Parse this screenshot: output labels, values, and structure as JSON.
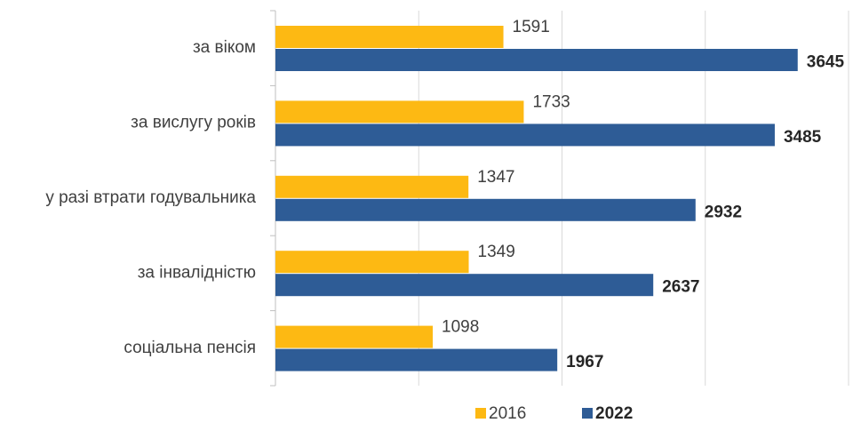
{
  "chart_data": {
    "type": "bar",
    "orientation": "horizontal",
    "categories": [
      "за віком",
      "за вислугу років",
      "у разі втрати годувальника",
      "за інвалідністю",
      "соціальна пенсія"
    ],
    "series": [
      {
        "name": "2016",
        "color": "#FDB913",
        "values": [
          1591,
          1733,
          1347,
          1349,
          1098
        ]
      },
      {
        "name": "2022",
        "color": "#2E5C96",
        "values": [
          3645,
          3485,
          2932,
          2637,
          1967
        ]
      }
    ],
    "xlim": [
      0,
      4000
    ],
    "xticks": [
      0,
      1000,
      2000,
      3000,
      4000
    ],
    "grid": true,
    "legend": "bottom"
  }
}
